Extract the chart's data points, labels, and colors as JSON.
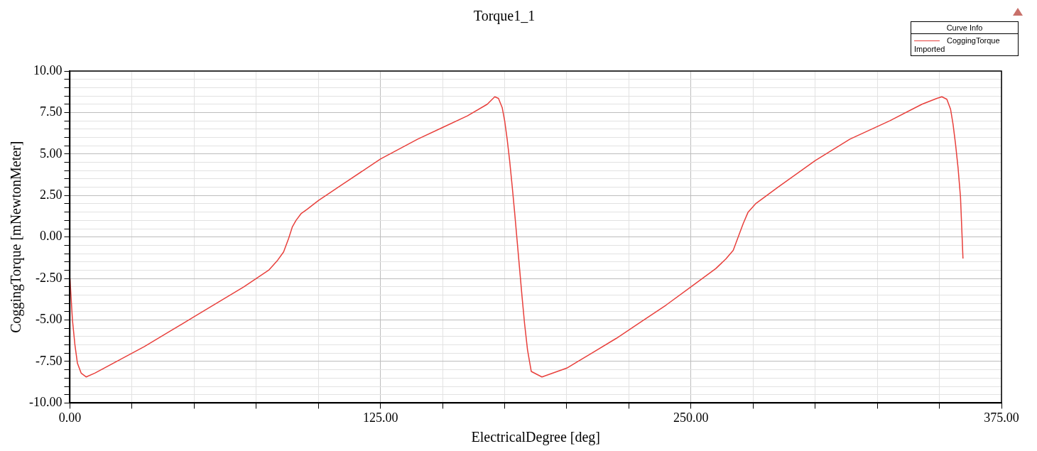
{
  "chart_data": {
    "type": "line",
    "title": "Torque1_1",
    "xlabel": "ElectricalDegree [deg]",
    "ylabel": "CoggingTorque [mNewtonMeter]",
    "legend_title": "Curve Info",
    "legend": "top right",
    "grid": true,
    "marker": "none",
    "line_style": "solid",
    "annotations": [
      "Imported"
    ],
    "xlim": [
      0,
      375
    ],
    "ylim": [
      -10,
      10
    ],
    "xticks": [
      {
        "value": 0,
        "label": "0.00"
      },
      {
        "value": 25,
        "label": null
      },
      {
        "value": 50,
        "label": null
      },
      {
        "value": 75,
        "label": null
      },
      {
        "value": 100,
        "label": null
      },
      {
        "value": 125,
        "label": "125.00"
      },
      {
        "value": 150,
        "label": null
      },
      {
        "value": 175,
        "label": null
      },
      {
        "value": 200,
        "label": null
      },
      {
        "value": 225,
        "label": null
      },
      {
        "value": 250,
        "label": "250.00"
      },
      {
        "value": 275,
        "label": null
      },
      {
        "value": 300,
        "label": null
      },
      {
        "value": 325,
        "label": null
      },
      {
        "value": 350,
        "label": null
      },
      {
        "value": 375,
        "label": "375.00"
      }
    ],
    "yticks": [
      {
        "value": -10,
        "label": "-10.00"
      },
      {
        "value": -9.5,
        "label": null
      },
      {
        "value": -9,
        "label": null
      },
      {
        "value": -8.5,
        "label": null
      },
      {
        "value": -8,
        "label": null
      },
      {
        "value": -7.5,
        "label": "-7.50"
      },
      {
        "value": -7,
        "label": null
      },
      {
        "value": -6.5,
        "label": null
      },
      {
        "value": -6,
        "label": null
      },
      {
        "value": -5.5,
        "label": null
      },
      {
        "value": -5,
        "label": "-5.00"
      },
      {
        "value": -4.5,
        "label": null
      },
      {
        "value": -4,
        "label": null
      },
      {
        "value": -3.5,
        "label": null
      },
      {
        "value": -3,
        "label": null
      },
      {
        "value": -2.5,
        "label": "-2.50"
      },
      {
        "value": -2,
        "label": null
      },
      {
        "value": -1.5,
        "label": null
      },
      {
        "value": -1,
        "label": null
      },
      {
        "value": -0.5,
        "label": null
      },
      {
        "value": 0,
        "label": "0.00"
      },
      {
        "value": 0.5,
        "label": null
      },
      {
        "value": 1,
        "label": null
      },
      {
        "value": 1.5,
        "label": null
      },
      {
        "value": 2,
        "label": null
      },
      {
        "value": 2.5,
        "label": "2.50"
      },
      {
        "value": 3,
        "label": null
      },
      {
        "value": 3.5,
        "label": null
      },
      {
        "value": 4,
        "label": null
      },
      {
        "value": 4.5,
        "label": null
      },
      {
        "value": 5,
        "label": "5.00"
      },
      {
        "value": 5.5,
        "label": null
      },
      {
        "value": 6,
        "label": null
      },
      {
        "value": 6.5,
        "label": null
      },
      {
        "value": 7,
        "label": null
      },
      {
        "value": 7.5,
        "label": "7.50"
      },
      {
        "value": 8,
        "label": null
      },
      {
        "value": 8.5,
        "label": null
      },
      {
        "value": 9,
        "label": null
      },
      {
        "value": 9.5,
        "label": null
      },
      {
        "value": 10,
        "label": "10.00"
      }
    ],
    "series": [
      {
        "name": "CoggingTorque",
        "color": "#e8403c",
        "x": [
          0,
          1,
          2,
          3,
          4.5,
          6.5,
          10,
          20,
          30,
          40,
          50,
          60,
          70,
          80,
          83.6,
          86,
          88,
          89.5,
          91,
          93,
          95.4,
          100,
          110,
          125,
          140,
          150,
          160,
          168,
          171,
          172.5,
          174,
          175,
          176,
          177,
          178,
          179,
          180,
          181,
          182,
          183,
          184.2,
          185.7,
          190,
          200,
          210,
          220,
          230,
          240,
          250,
          260,
          264,
          267,
          269,
          271,
          273,
          276,
          285,
          300,
          314,
          330,
          343,
          349,
          351,
          353,
          354.5,
          355.5,
          356.5,
          357.5,
          358.5,
          359.5
        ],
        "values": [
          -2.5,
          -5.0,
          -6.5,
          -7.6,
          -8.2,
          -8.43,
          -8.2,
          -7.4,
          -6.6,
          -5.7,
          -4.8,
          -3.9,
          -3.0,
          -2.0,
          -1.4,
          -0.9,
          -0.1,
          0.6,
          1.0,
          1.4,
          1.66,
          2.2,
          3.2,
          4.7,
          5.9,
          6.6,
          7.3,
          8.0,
          8.45,
          8.35,
          7.8,
          7.0,
          5.9,
          4.6,
          3.1,
          1.5,
          -0.2,
          -1.9,
          -3.6,
          -5.2,
          -6.8,
          -8.1,
          -8.43,
          -7.9,
          -7.0,
          -6.1,
          -5.1,
          -4.1,
          -3.0,
          -1.9,
          -1.33,
          -0.8,
          0,
          0.8,
          1.5,
          2.0,
          3.0,
          4.6,
          5.9,
          7.0,
          8.0,
          8.35,
          8.45,
          8.3,
          7.7,
          6.8,
          5.6,
          4.2,
          2.4,
          -1.3
        ]
      }
    ]
  }
}
